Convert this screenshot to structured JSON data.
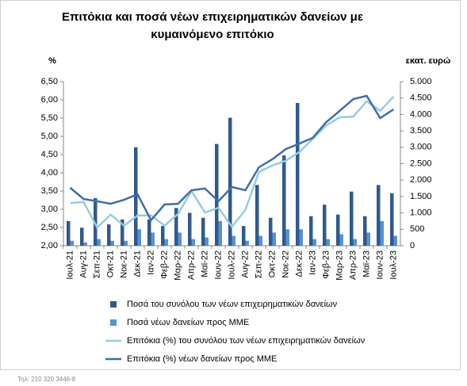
{
  "chart_data": {
    "type": "combo",
    "title": [
      "Επιτόκια και ποσά νέων επιχειρηματικών δανείων με",
      "κυμαινόμενο επιτόκιο"
    ],
    "ylabel": "%",
    "y2label": "εκατ. ευρώ",
    "categories": [
      "Ιουλ-21",
      "Αυγ-21",
      "Σεπ-21",
      "Οκτ-21",
      "Νοε-21",
      "Δεκ-21",
      "Ιαν-22",
      "Φεβ-22",
      "Μαρ-22",
      "Απρ-22",
      "Μαϊ-22",
      "Ιουν-22",
      "Ιουλ-22",
      "Αυγ-22",
      "Σεπ-22",
      "Οκτ-22",
      "Νοε-22",
      "Δεκ-22",
      "Ιαν-23",
      "Φεβ-23",
      "Μαρ-23",
      "Απρ-23",
      "Μαϊ-23",
      "Ιουν-23",
      "Ιουλ-23"
    ],
    "ylim": [
      2,
      6.5
    ],
    "yticks": [
      {
        "value": 2,
        "label": "2,00"
      },
      {
        "value": 2.5,
        "label": "2,50"
      },
      {
        "value": 3,
        "label": "3,00"
      },
      {
        "value": 3.5,
        "label": "3,50"
      },
      {
        "value": 4,
        "label": "4,00"
      },
      {
        "value": 4.5,
        "label": "4,50"
      },
      {
        "value": 5,
        "label": "5,00"
      },
      {
        "value": 5.5,
        "label": "5,50"
      },
      {
        "value": 6,
        "label": "6,00"
      },
      {
        "value": 6.5,
        "label": "6,50"
      }
    ],
    "y2lim": [
      0,
      5000
    ],
    "y2ticks": [
      0,
      500,
      {
        "value": 1000,
        "label": "1.000"
      },
      {
        "value": 1500,
        "label": "1.500"
      },
      {
        "value": 2000,
        "label": "2.000"
      },
      {
        "value": 2500,
        "label": "2.500"
      },
      {
        "value": 3000,
        "label": "3.000"
      },
      {
        "value": 3500,
        "label": "3.500"
      },
      {
        "value": 4000,
        "label": "4.000"
      },
      {
        "value": 4500,
        "label": "4.500"
      },
      {
        "value": 5000,
        "label": "5.000"
      }
    ],
    "series": [
      {
        "name": "Ποσά του συνόλου των νέων επιχειρηματικών δανείων",
        "type": "bar",
        "axis": "y2",
        "color": "#2f5a8e",
        "values": [
          750,
          550,
          1450,
          650,
          800,
          3000,
          800,
          600,
          1150,
          1000,
          850,
          3100,
          3900,
          600,
          1850,
          850,
          2750,
          4350,
          900,
          1250,
          950,
          1650,
          900,
          1850,
          1600
        ]
      },
      {
        "name": "Ποσά νέων δανείων προς ΜΜΕ",
        "type": "bar",
        "axis": "y2",
        "color": "#5692d4",
        "values": [
          150,
          100,
          200,
          150,
          150,
          500,
          400,
          200,
          400,
          200,
          250,
          750,
          300,
          150,
          300,
          400,
          500,
          500,
          200,
          200,
          350,
          200,
          400,
          750,
          300
        ]
      },
      {
        "name": "Επιτόκια (%) του συνόλου των νέων επιχειρηματικών δανείων",
        "type": "line",
        "axis": "y",
        "color": "#93cfde",
        "values": [
          3.17,
          3.2,
          2.5,
          2.85,
          2.55,
          2.83,
          2.83,
          2.55,
          2.87,
          3.5,
          2.91,
          3.04,
          2.52,
          2.98,
          4.02,
          4.2,
          4.33,
          4.57,
          4.93,
          5.3,
          5.52,
          5.54,
          5.96,
          5.7,
          6.09
        ]
      },
      {
        "name": "Επιτόκια (%) νέων δανείων προς ΜΜΕ",
        "type": "line",
        "axis": "y",
        "color": "#3c6db3",
        "values": [
          3.59,
          3.28,
          3.22,
          3.15,
          3.26,
          3.41,
          2.7,
          3.13,
          3.15,
          3.52,
          3.57,
          3.22,
          3.61,
          3.52,
          4.15,
          4.37,
          4.65,
          4.8,
          4.96,
          5.39,
          5.7,
          6.02,
          6.11,
          5.5,
          5.74
        ]
      }
    ]
  },
  "footer": "Τηλ: 210 320 3446-8"
}
